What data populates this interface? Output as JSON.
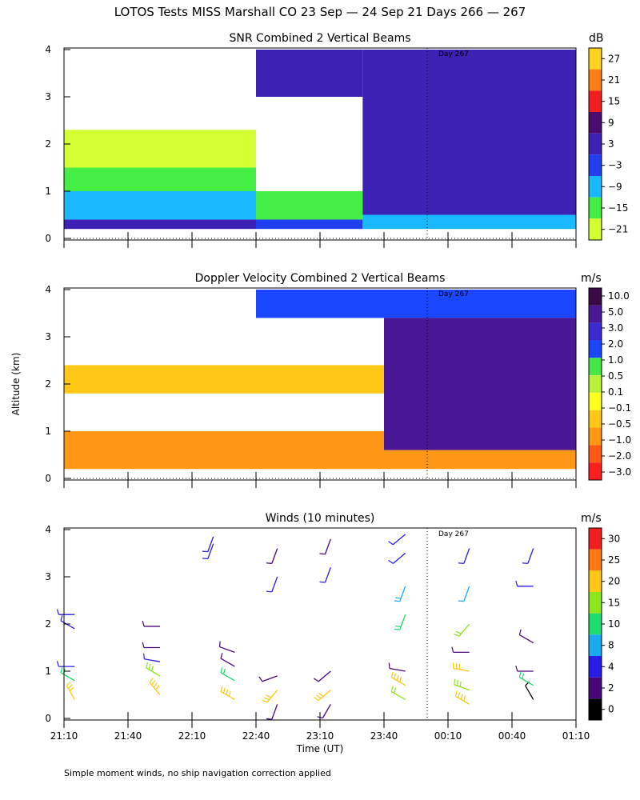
{
  "title": "LOTOS Tests MISS Marshall CO  23 Sep — 24 Sep 21 Days 266 — 267",
  "ylabel": "Altitude (km)",
  "xlabel": "Time (UT)",
  "footnote": "Simple moment winds, no ship navigation correction applied",
  "xticks": [
    "21:10",
    "21:40",
    "22:10",
    "22:40",
    "23:10",
    "23:40",
    "00:10",
    "00:40",
    "01:10"
  ],
  "yticks": [
    "0",
    "1",
    "2",
    "3",
    "4"
  ],
  "day_marker": "Day 267",
  "colors": {
    "snr": [
      "#d4ff33",
      "#44ee44",
      "#1ab8ff",
      "#1f3ff0",
      "#3d20b4",
      "#4a0a6e",
      "#f01e1e",
      "#ff7d14",
      "#ffd21e"
    ],
    "doppler": [
      "#ff1e1e",
      "#ff5a14",
      "#ff9614",
      "#ffc814",
      "#ffff1e",
      "#b8f03a",
      "#46e646",
      "#1a46ff",
      "#3a2ad2",
      "#4a1896",
      "#3a0a46"
    ],
    "winds": [
      "#000000",
      "#46087a",
      "#2a1ee6",
      "#1aaaf0",
      "#1edc6e",
      "#8ce61e",
      "#ffc814",
      "#ff7814",
      "#f01e1e"
    ]
  },
  "chart_data": [
    {
      "type": "heatmap",
      "title": "SNR Combined 2 Vertical Beams",
      "unit": "dB",
      "xrange": [
        "21:10",
        "01:10"
      ],
      "ylim": [
        0,
        4
      ],
      "colorbar_ticks": [
        "27",
        "21",
        "15",
        "9",
        "3",
        "−3",
        "−9",
        "−15",
        "−21"
      ],
      "bins": [
        {
          "from": "21:10",
          "to": "22:40",
          "layers": [
            {
              "alt": [
                0.2,
                0.4,
                3.0
              ]
            },
            {
              "alt": [
                0.4,
                1.0,
                -8.0
              ]
            },
            {
              "alt": [
                1.0,
                1.5,
                -14.0
              ]
            },
            {
              "alt": [
                1.5,
                2.3,
                -18.0
              ]
            }
          ]
        },
        {
          "from": "22:40",
          "to": "23:30",
          "layers": [
            {
              "alt": [
                0.2,
                0.4,
                -2.0
              ]
            },
            {
              "alt": [
                0.4,
                1.0,
                -12.0
              ]
            },
            {
              "alt": [
                3.0,
                4.0,
                2.0
              ]
            }
          ]
        },
        {
          "from": "23:30",
          "to": "01:10",
          "layers": [
            {
              "alt": [
                0.2,
                0.5,
                -8.0
              ]
            },
            {
              "alt": [
                0.5,
                4.0,
                1.0
              ]
            }
          ]
        }
      ]
    },
    {
      "type": "heatmap",
      "title": "Doppler Velocity Combined 2 Vertical Beams",
      "unit": "m/s",
      "xrange": [
        "21:10",
        "01:10"
      ],
      "ylim": [
        0,
        4
      ],
      "colorbar_ticks": [
        "10.0",
        "5.0",
        "3.0",
        "2.0",
        "1.0",
        "0.5",
        "0.1",
        "−0.1",
        "−0.5",
        "−1.0",
        "−2.0",
        "−3.0"
      ],
      "bins": [
        {
          "from": "21:10",
          "to": "23:40",
          "layers": [
            {
              "alt": [
                0.2,
                1.0,
                -1.0
              ]
            },
            {
              "alt": [
                1.8,
                2.4,
                -0.5
              ]
            }
          ]
        },
        {
          "from": "22:40",
          "to": "01:10",
          "layers": [
            {
              "alt": [
                3.4,
                4.0,
                1.5
              ]
            }
          ]
        },
        {
          "from": "23:40",
          "to": "01:10",
          "layers": [
            {
              "alt": [
                0.2,
                0.6,
                -1.0
              ]
            },
            {
              "alt": [
                0.6,
                3.4,
                3.0
              ]
            }
          ]
        }
      ]
    },
    {
      "type": "scatter",
      "title": "Winds (10 minutes)",
      "unit": "m/s",
      "xrange": [
        "21:10",
        "01:10"
      ],
      "ylim": [
        0,
        4
      ],
      "colorbar_ticks": [
        "30",
        "25",
        "20",
        "15",
        "10",
        "8",
        "4",
        "2",
        "0"
      ],
      "profiles": [
        {
          "time": "21:15",
          "levels": [
            {
              "alt": 0.4,
              "dir": 330,
              "speed": 20
            },
            {
              "alt": 0.8,
              "dir": 300,
              "speed": 10
            },
            {
              "alt": 1.1,
              "dir": 270,
              "speed": 5
            },
            {
              "alt": 1.9,
              "dir": 300,
              "speed": 6
            },
            {
              "alt": 2.2,
              "dir": 270,
              "speed": 4
            }
          ]
        },
        {
          "time": "21:55",
          "levels": [
            {
              "alt": 0.5,
              "dir": 320,
              "speed": 22
            },
            {
              "alt": 0.9,
              "dir": 300,
              "speed": 15
            },
            {
              "alt": 1.2,
              "dir": 280,
              "speed": 4
            },
            {
              "alt": 1.5,
              "dir": 270,
              "speed": 3
            },
            {
              "alt": 1.95,
              "dir": 270,
              "speed": 2
            }
          ]
        },
        {
          "time": "22:20",
          "levels": [
            {
              "alt": 3.7,
              "dir": 200,
              "speed": 4
            },
            {
              "alt": 3.85,
              "dir": 200,
              "speed": 4
            }
          ]
        },
        {
          "time": "22:30",
          "levels": [
            {
              "alt": 0.4,
              "dir": 300,
              "speed": 21
            },
            {
              "alt": 0.8,
              "dir": 300,
              "speed": 12
            },
            {
              "alt": 1.1,
              "dir": 300,
              "speed": 3
            },
            {
              "alt": 1.4,
              "dir": 290,
              "speed": 3
            }
          ]
        },
        {
          "time": "22:50",
          "levels": [
            {
              "alt": 0.3,
              "dir": 200,
              "speed": 3
            },
            {
              "alt": 0.6,
              "dir": 220,
              "speed": 18
            },
            {
              "alt": 0.9,
              "dir": 250,
              "speed": 3
            },
            {
              "alt": 3.0,
              "dir": 200,
              "speed": 4
            },
            {
              "alt": 3.6,
              "dir": 200,
              "speed": 3
            }
          ]
        },
        {
          "time": "23:15",
          "levels": [
            {
              "alt": 0.3,
              "dir": 210,
              "speed": 3
            },
            {
              "alt": 0.6,
              "dir": 230,
              "speed": 19
            },
            {
              "alt": 1.0,
              "dir": 230,
              "speed": 2
            },
            {
              "alt": 3.2,
              "dir": 200,
              "speed": 4
            },
            {
              "alt": 3.8,
              "dir": 200,
              "speed": 3
            }
          ]
        },
        {
          "time": "23:50",
          "levels": [
            {
              "alt": 0.4,
              "dir": 300,
              "speed": 14
            },
            {
              "alt": 0.7,
              "dir": 300,
              "speed": 22
            },
            {
              "alt": 1.0,
              "dir": 280,
              "speed": 3
            },
            {
              "alt": 2.2,
              "dir": 200,
              "speed": 12
            },
            {
              "alt": 2.8,
              "dir": 200,
              "speed": 9
            },
            {
              "alt": 3.5,
              "dir": 230,
              "speed": 4
            },
            {
              "alt": 3.9,
              "dir": 230,
              "speed": 4
            }
          ]
        },
        {
          "time": "00:20",
          "levels": [
            {
              "alt": 0.3,
              "dir": 300,
              "speed": 22
            },
            {
              "alt": 0.6,
              "dir": 290,
              "speed": 15
            },
            {
              "alt": 1.0,
              "dir": 280,
              "speed": 20
            },
            {
              "alt": 1.4,
              "dir": 270,
              "speed": 3
            },
            {
              "alt": 2.0,
              "dir": 220,
              "speed": 13
            },
            {
              "alt": 2.8,
              "dir": 200,
              "speed": 8
            },
            {
              "alt": 3.6,
              "dir": 200,
              "speed": 4
            }
          ]
        },
        {
          "time": "00:50",
          "levels": [
            {
              "alt": 0.4,
              "dir": 330,
              "speed": 1
            },
            {
              "alt": 0.7,
              "dir": 300,
              "speed": 11
            },
            {
              "alt": 1.0,
              "dir": 270,
              "speed": 3
            },
            {
              "alt": 1.6,
              "dir": 300,
              "speed": 3
            },
            {
              "alt": 2.8,
              "dir": 270,
              "speed": 4
            },
            {
              "alt": 3.6,
              "dir": 200,
              "speed": 4
            }
          ]
        }
      ]
    }
  ]
}
